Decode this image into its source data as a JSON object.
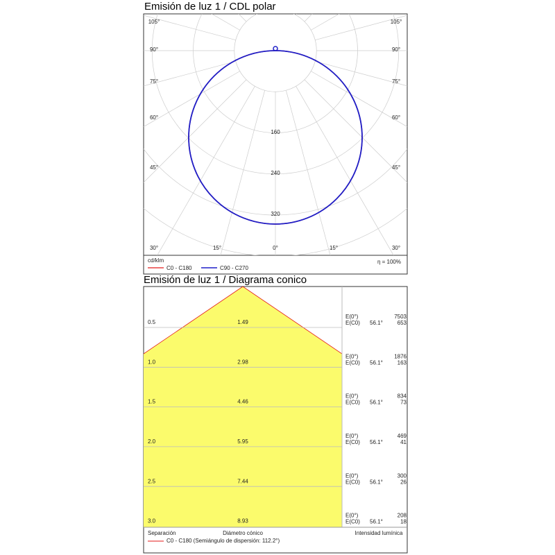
{
  "polar": {
    "title": "Emisión de luz 1 / CDL polar",
    "angle_labels_left": [
      "105°",
      "90°",
      "75°",
      "60°",
      "45°",
      "30°"
    ],
    "angle_labels_right": [
      "105°",
      "90°",
      "75°",
      "60°",
      "45°",
      "30°"
    ],
    "bottom_labels": [
      "30°",
      "15°",
      "0°",
      "15°",
      "30°"
    ],
    "radial_labels": [
      "160",
      "240",
      "320"
    ],
    "unit": "cd/klm",
    "legend": [
      {
        "label": "C0 - C180",
        "color": "#e31a1a"
      },
      {
        "label": "C90 - C270",
        "color": "#1f1fc8"
      }
    ],
    "efficiency": "η = 100%"
  },
  "cone": {
    "title": "Emisión de luz 1 / Diagrama conico",
    "rows": [
      {
        "separation": "0.5",
        "diameter": "1.49",
        "e0_label": "E(0°)",
        "ec0_label": "E(C0)",
        "angle": "56.1°",
        "e0": "7503",
        "ec0": "653"
      },
      {
        "separation": "1.0",
        "diameter": "2.98",
        "e0_label": "E(0°)",
        "ec0_label": "E(C0)",
        "angle": "56.1°",
        "e0": "1876",
        "ec0": "163"
      },
      {
        "separation": "1.5",
        "diameter": "4.46",
        "e0_label": "E(0°)",
        "ec0_label": "E(C0)",
        "angle": "56.1°",
        "e0": "834",
        "ec0": "73"
      },
      {
        "separation": "2.0",
        "diameter": "5.95",
        "e0_label": "E(0°)",
        "ec0_label": "E(C0)",
        "angle": "56.1°",
        "e0": "469",
        "ec0": "41"
      },
      {
        "separation": "2.5",
        "diameter": "7.44",
        "e0_label": "E(0°)",
        "ec0_label": "E(C0)",
        "angle": "56.1°",
        "e0": "300",
        "ec0": "26"
      },
      {
        "separation": "3.0",
        "diameter": "8.93",
        "e0_label": "E(0°)",
        "ec0_label": "E(C0)",
        "angle": "56.1°",
        "e0": "208",
        "ec0": "18"
      }
    ],
    "footer": {
      "separation": "Separación",
      "diameter": "Diámetro cónico",
      "intensity": "Intensidad lumínica"
    },
    "legend": "C0 - C180 (Semiángulo de dispersión: 112.2°)"
  }
}
